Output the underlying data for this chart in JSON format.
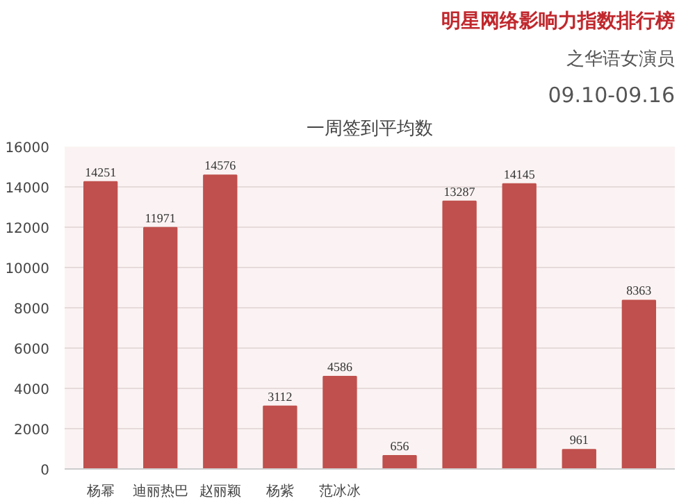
{
  "chart_data": {
    "type": "bar",
    "title": "明星网络影响力指数排行榜",
    "subtitle": "之华语女演员",
    "annotations": [
      "09.10-09.16",
      "一周签到平均数"
    ],
    "categories": [
      "杨幂",
      "迪丽热巴",
      "赵丽颖",
      "杨紫",
      "范冰冰",
      null,
      null,
      null,
      null,
      null
    ],
    "values": [
      14251,
      11971,
      14576,
      3112,
      4586,
      656,
      13287,
      14145,
      961,
      8363
    ],
    "color": "#c0504d",
    "data_labels": true,
    "ylim": [
      0,
      16000
    ],
    "yticks": [
      0,
      2000,
      4000,
      6000,
      8000,
      10000,
      12000,
      14000,
      16000
    ],
    "grid": "y"
  }
}
